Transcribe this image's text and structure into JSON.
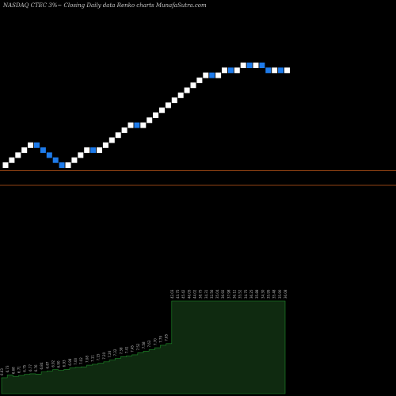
{
  "title": "NASDAQ CTEC 3%~  Closing Daily data  Renko  charts MunafaSutra.com",
  "chart_data": [
    {
      "type": "renko",
      "direction": [
        "up",
        "up",
        "up",
        "up",
        "up",
        "down",
        "down",
        "down",
        "down",
        "down",
        "up",
        "up",
        "up",
        "up",
        "down",
        "up",
        "up",
        "up",
        "up",
        "up",
        "up",
        "down",
        "up",
        "up",
        "up",
        "up",
        "up",
        "up",
        "up",
        "up",
        "up",
        "up",
        "up",
        "down",
        "up",
        "up",
        "down",
        "up",
        "up",
        "down",
        "up",
        "down",
        "down",
        "up",
        "down",
        "up"
      ],
      "reference_lines": 2,
      "colors": {
        "up": "#ffffff",
        "down": "#1e7bea",
        "reference_line": "#c0581a",
        "background": "#000000"
      }
    },
    {
      "type": "area",
      "tick_labels": [
        "6.63",
        "6.73",
        "6.68",
        "6.71",
        "6.75",
        "6.77",
        "6.76",
        "6.84",
        "6.87",
        "6.92",
        "6.90",
        "6.93",
        "6.98",
        "7.00",
        "7.02",
        "7.08",
        "7.11",
        "7.15",
        "7.20",
        "7.26",
        "7.32",
        "7.38",
        "7.41",
        "7.45",
        "7.52",
        "7.58",
        "7.63",
        "7.70",
        "7.79",
        "7.85",
        "42.03",
        "43.75",
        "45.42",
        "46.05",
        "44.02",
        "38.75",
        "34.31",
        "32.56",
        "35.04",
        "36.92",
        "37.98",
        "36.12",
        "35.52",
        "34.75",
        "36.25",
        "35.88",
        "34.30",
        "35.95",
        "35.48",
        "35.90",
        "36.08"
      ],
      "values": [
        6.63,
        6.73,
        6.68,
        6.71,
        6.75,
        6.77,
        6.76,
        6.84,
        6.87,
        6.92,
        6.9,
        6.93,
        6.98,
        7.0,
        7.02,
        7.08,
        7.11,
        7.15,
        7.2,
        7.26,
        7.32,
        7.38,
        7.41,
        7.45,
        7.52,
        7.58,
        7.63,
        7.7,
        7.79,
        7.85,
        42.03,
        43.75,
        45.42,
        46.05,
        44.02,
        38.75,
        34.31,
        32.56,
        35.04,
        36.92,
        37.98,
        36.12,
        35.52,
        34.75,
        36.25,
        35.88,
        34.3,
        35.95,
        35.48,
        35.9,
        36.08
      ],
      "colors": {
        "fill": "#0f2a10",
        "line": "#1f8f2a"
      }
    }
  ]
}
